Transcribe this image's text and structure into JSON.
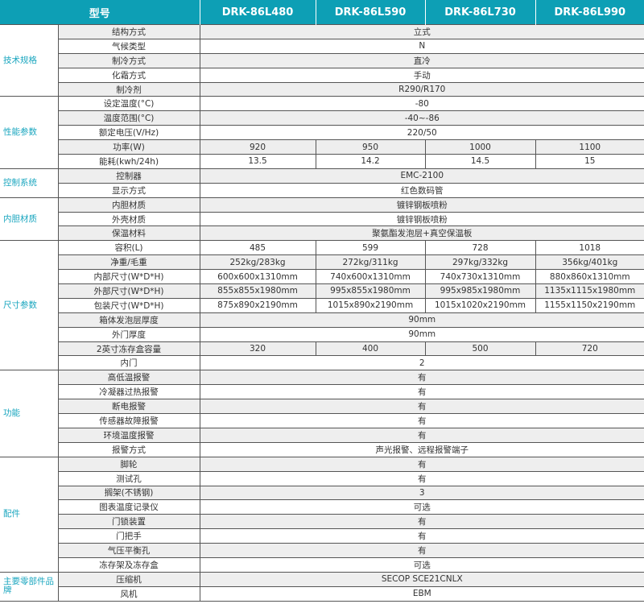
{
  "header": {
    "label": "型号",
    "models": [
      "DRK-86L480",
      "DRK-86L590",
      "DRK-86L730",
      "DRK-86L990"
    ]
  },
  "groups": [
    {
      "name": "技术规格",
      "rows": [
        {
          "label": "结构方式",
          "value": "立式"
        },
        {
          "label": "气候类型",
          "value": "N"
        },
        {
          "label": "制冷方式",
          "value": "直冷"
        },
        {
          "label": "化霜方式",
          "value": "手动"
        },
        {
          "label": "制冷剂",
          "value": "R290/R170"
        }
      ]
    },
    {
      "name": "性能参数",
      "rows": [
        {
          "label": "设定温度(°C)",
          "value": "-80"
        },
        {
          "label": "温度范围(°C)",
          "value": "-40~-86"
        },
        {
          "label": "额定电压(V/Hz)",
          "value": "220/50"
        },
        {
          "label": "功率(W)",
          "values": [
            "920",
            "950",
            "1000",
            "1100"
          ]
        },
        {
          "label": "能耗(kwh/24h)",
          "values": [
            "13.5",
            "14.2",
            "14.5",
            "15"
          ]
        }
      ]
    },
    {
      "name": "控制系统",
      "rows": [
        {
          "label": "控制器",
          "value": "EMC-2100"
        },
        {
          "label": "显示方式",
          "value": "红色数码管"
        }
      ]
    },
    {
      "name": "内胆材质",
      "rows": [
        {
          "label": "内胆材质",
          "value": "镀锌钢板喷粉"
        },
        {
          "label": "外壳材质",
          "value": "镀锌钢板喷粉"
        },
        {
          "label": "保温材料",
          "value": "聚氨酯发泡层+真空保温板"
        }
      ]
    },
    {
      "name": "尺寸参数",
      "rows": [
        {
          "label": "容积(L)",
          "values": [
            "485",
            "599",
            "728",
            "1018"
          ]
        },
        {
          "label": "净重/毛重",
          "values": [
            "252kg/283kg",
            "272kg/311kg",
            "297kg/332kg",
            "356kg/401kg"
          ]
        },
        {
          "label": "内部尺寸(W*D*H)",
          "values": [
            "600x600x1310mm",
            "740x600x1310mm",
            "740x730x1310mm",
            "880x860x1310mm"
          ]
        },
        {
          "label": "外部尺寸(W*D*H)",
          "values": [
            "855x855x1980mm",
            "995x855x1980mm",
            "995x985x1980mm",
            "1135x1115x1980mm"
          ]
        },
        {
          "label": "包装尺寸(W*D*H)",
          "values": [
            "875x890x2190mm",
            "1015x890x2190mm",
            "1015x1020x2190mm",
            "1155x1150x2190mm"
          ]
        },
        {
          "label": "箱体发泡层厚度",
          "value": "90mm"
        },
        {
          "label": "外门厚度",
          "value": "90mm"
        },
        {
          "label": "2英寸冻存盒容量",
          "values": [
            "320",
            "400",
            "500",
            "720"
          ]
        },
        {
          "label": "内门",
          "value": "2"
        }
      ]
    },
    {
      "name": "功能",
      "rows": [
        {
          "label": "高低温报警",
          "value": "有"
        },
        {
          "label": "冷凝器过热报警",
          "value": "有"
        },
        {
          "label": "断电报警",
          "value": "有"
        },
        {
          "label": "传感器故障报警",
          "value": "有"
        },
        {
          "label": "环境温度报警",
          "value": "有"
        },
        {
          "label": "报警方式",
          "value": "声光报警、远程报警端子"
        }
      ]
    },
    {
      "name": "配件",
      "rows": [
        {
          "label": "脚轮",
          "value": "有"
        },
        {
          "label": "测试孔",
          "value": "有"
        },
        {
          "label": "搁架(不锈钢)",
          "value": "3"
        },
        {
          "label": "图表温度记录仪",
          "value": "可选"
        },
        {
          "label": "门锁装置",
          "value": "有"
        },
        {
          "label": "门把手",
          "value": "有"
        },
        {
          "label": "气压平衡孔",
          "value": "有"
        },
        {
          "label": "冻存架及冻存盒",
          "value": "可选"
        }
      ]
    },
    {
      "name": "主要零部件品牌",
      "rows": [
        {
          "label": "压缩机",
          "value": "SECOP SCE21CNLX"
        },
        {
          "label": "风机",
          "value": "EBM"
        }
      ]
    }
  ]
}
